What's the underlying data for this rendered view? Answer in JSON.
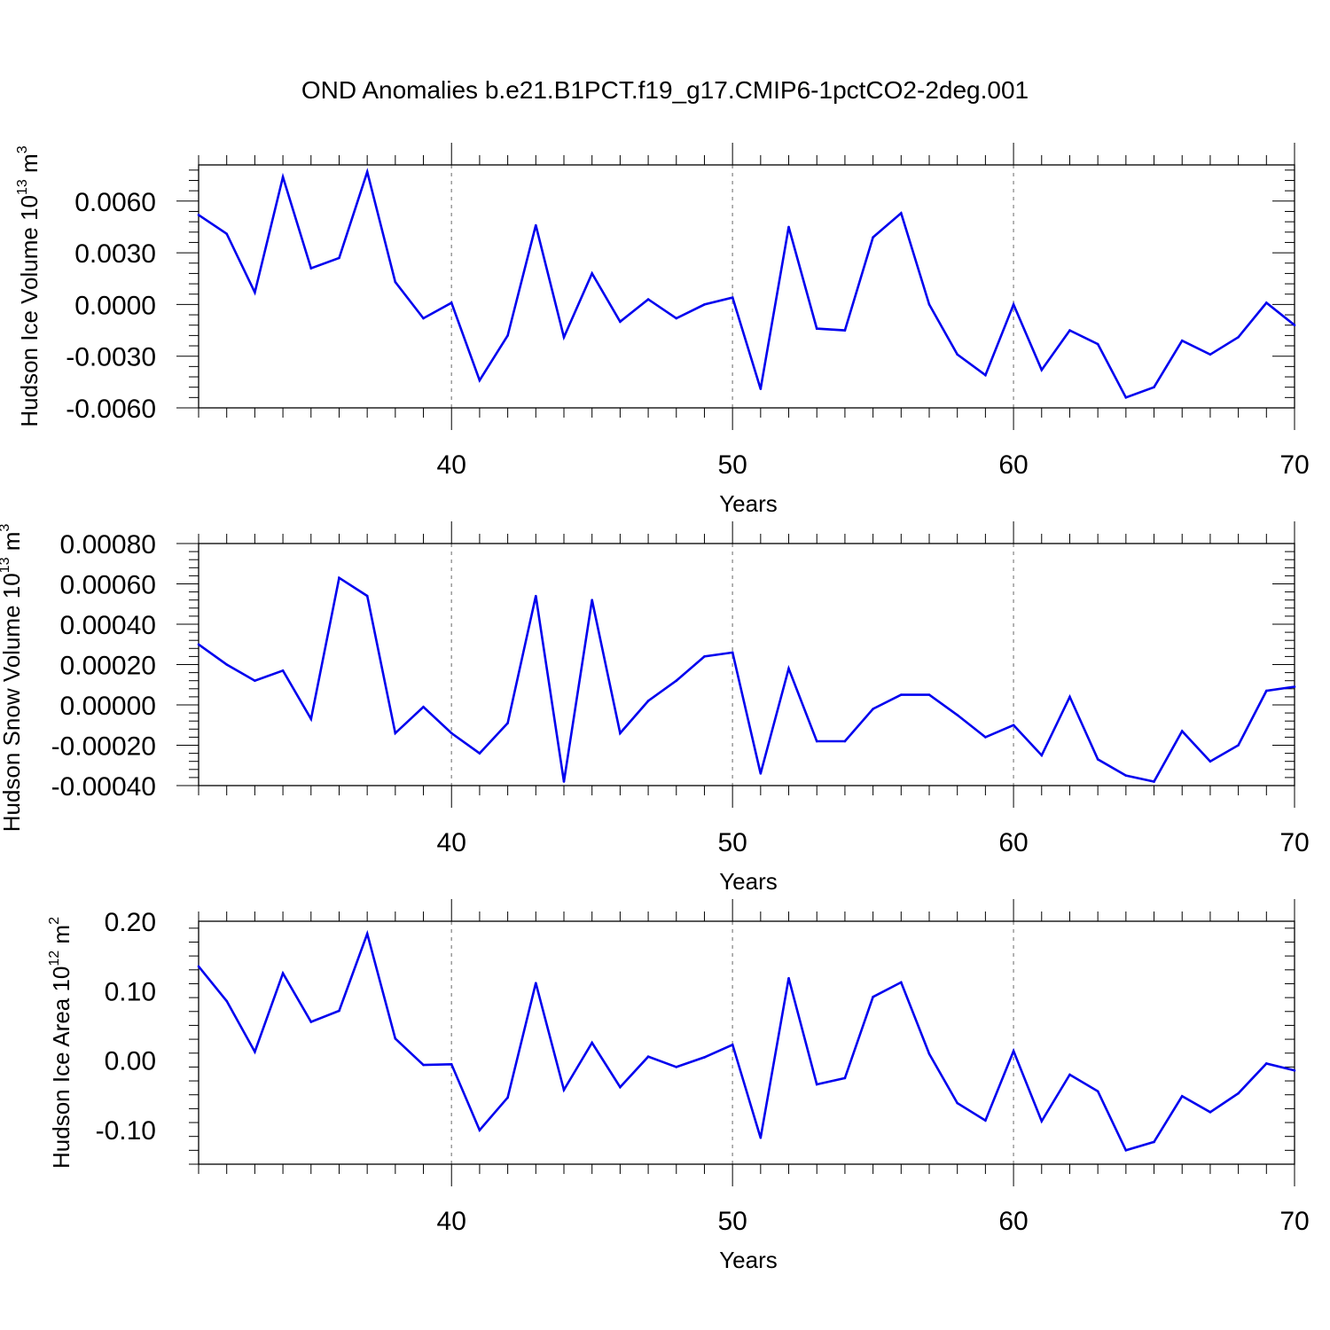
{
  "chart_data": {
    "type": "line",
    "title": "OND Anomalies b.e21.B1PCT.f19_g17.CMIP6-1pctCO2-2deg.001",
    "line_color": "#0000ee",
    "grid_color": "#9a9a9a",
    "x": [
      31,
      32,
      33,
      34,
      35,
      36,
      37,
      38,
      39,
      40,
      41,
      42,
      43,
      44,
      45,
      46,
      47,
      48,
      49,
      50,
      51,
      52,
      53,
      54,
      55,
      56,
      57,
      58,
      59,
      60,
      61,
      62,
      63,
      64,
      65,
      66,
      67,
      68,
      69,
      70
    ],
    "xlim": [
      31,
      70
    ],
    "xticks": [
      40,
      50,
      60,
      70
    ],
    "xtick_labels": [
      "40",
      "50",
      "60",
      "70"
    ],
    "panels": [
      {
        "name": "ice-volume",
        "xlabel": "Years",
        "ylabel_base": "Hudson Ice Volume 10",
        "ylabel_exp": "13",
        "ylabel_unit": " m",
        "ylabel_unit_exp": "3",
        "ylim": [
          -0.006,
          0.0081
        ],
        "yticks": [
          -0.006,
          -0.003,
          0.0,
          0.003,
          0.006
        ],
        "ytick_labels": [
          "-0.0060",
          "-0.0030",
          "0.0000",
          "0.0030",
          "0.0060"
        ],
        "values": [
          0.0052,
          0.0041,
          0.0007,
          0.0074,
          0.0021,
          0.0027,
          0.0077,
          0.0013,
          -0.0008,
          0.0001,
          -0.0044,
          -0.0018,
          0.0046,
          -0.0019,
          0.0018,
          -0.001,
          0.0003,
          -0.0008,
          0.0,
          0.0004,
          -0.0049,
          0.0045,
          -0.0014,
          -0.0015,
          0.0039,
          0.0053,
          0.0,
          -0.0029,
          -0.0041,
          0.0,
          -0.0038,
          -0.0015,
          -0.0023,
          -0.0054,
          -0.0048,
          -0.0021,
          -0.0029,
          -0.0019,
          0.0001,
          -0.0012
        ]
      },
      {
        "name": "snow-volume",
        "xlabel": "Years",
        "ylabel_base": "Hudson Snow Volume 10",
        "ylabel_exp": "13",
        "ylabel_unit": " m",
        "ylabel_unit_exp": "3",
        "ylim": [
          -0.0004,
          0.0008
        ],
        "yticks": [
          -0.0004,
          -0.0002,
          0.0,
          0.0002,
          0.0004,
          0.0006,
          0.0008
        ],
        "ytick_labels": [
          "-0.00040",
          "-0.00020",
          "0.00000",
          "0.00020",
          "0.00040",
          "0.00060",
          "0.00080"
        ],
        "values": [
          0.0003,
          0.0002,
          0.00012,
          0.00017,
          -7e-05,
          0.00063,
          0.00054,
          -0.00014,
          -1e-05,
          -0.00014,
          -0.00024,
          -9e-05,
          0.00054,
          -0.00038,
          0.00052,
          -0.00014,
          2e-05,
          0.00012,
          0.00024,
          0.00026,
          -0.00034,
          0.00018,
          -0.00018,
          -0.00018,
          -2e-05,
          5e-05,
          5e-05,
          -5e-05,
          -0.00016,
          -0.0001,
          -0.00025,
          4e-05,
          -0.00027,
          -0.00035,
          -0.00038,
          -0.00013,
          -0.00028,
          -0.0002,
          7e-05,
          9e-05
        ]
      },
      {
        "name": "ice-area",
        "xlabel": "Years",
        "ylabel_base": "Hudson Ice Area 10",
        "ylabel_exp": "12",
        "ylabel_unit": " m",
        "ylabel_unit_exp": "2",
        "ylim": [
          -0.15,
          0.2
        ],
        "yticks": [
          -0.1,
          0.0,
          0.1,
          0.2
        ],
        "ytick_labels": [
          "-0.10",
          "0.00",
          "0.10",
          "0.20"
        ],
        "values": [
          0.135,
          0.085,
          0.012,
          0.125,
          0.055,
          0.071,
          0.182,
          0.031,
          -0.007,
          -0.006,
          -0.101,
          -0.054,
          0.111,
          -0.043,
          0.025,
          -0.039,
          0.005,
          -0.01,
          0.004,
          0.022,
          -0.112,
          0.118,
          -0.035,
          -0.026,
          0.091,
          0.112,
          0.009,
          -0.062,
          -0.087,
          0.013,
          -0.088,
          -0.021,
          -0.045,
          -0.13,
          -0.118,
          -0.052,
          -0.075,
          -0.048,
          -0.005,
          -0.015
        ]
      }
    ]
  }
}
